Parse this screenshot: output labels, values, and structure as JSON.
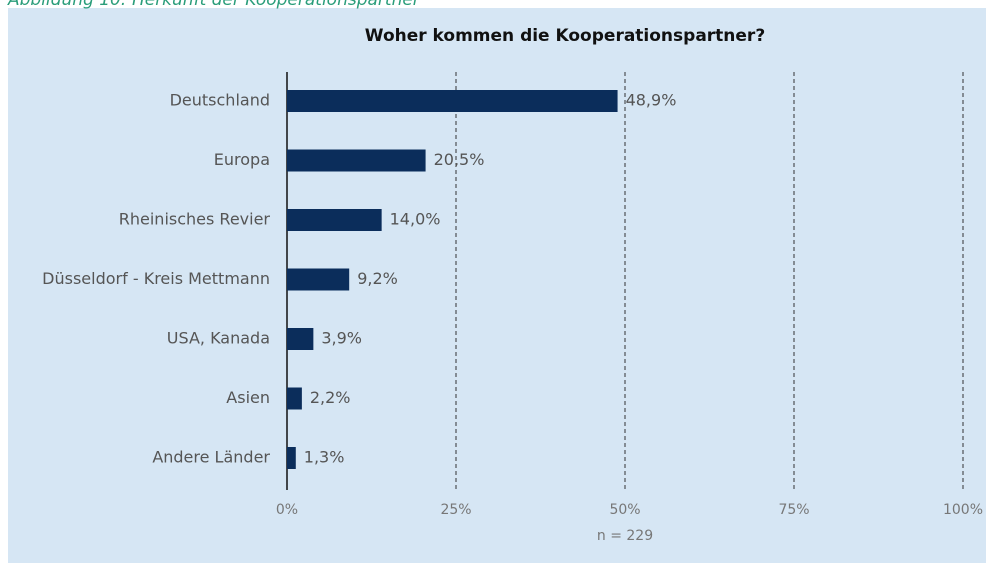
{
  "caption": "Abbildung 10: Herkunft der Kooperationspartner",
  "chart_data": {
    "type": "bar",
    "orientation": "horizontal",
    "title": "Woher kommen die Kooperationspartner?",
    "categories": [
      "Deutschland",
      "Europa",
      "Rheinisches Revier",
      "Düsseldorf - Kreis Mettmann",
      "USA, Kanada",
      "Asien",
      "Andere Länder"
    ],
    "values": [
      48.9,
      20.5,
      14.0,
      9.2,
      3.9,
      2.2,
      1.3
    ],
    "value_labels": [
      "48,9%",
      "20,5%",
      "14,0%",
      "9,2%",
      "3,9%",
      "2,2%",
      "1,3%"
    ],
    "color": "#0b2d5b",
    "xlim": [
      0,
      100
    ],
    "xticks": [
      {
        "value": 0,
        "label": "0%"
      },
      {
        "value": 25,
        "label": "25%"
      },
      {
        "value": 50,
        "label": "50%"
      },
      {
        "value": 75,
        "label": "75%"
      },
      {
        "value": 100,
        "label": "100%"
      }
    ],
    "grid": true,
    "note": "n = 229"
  }
}
